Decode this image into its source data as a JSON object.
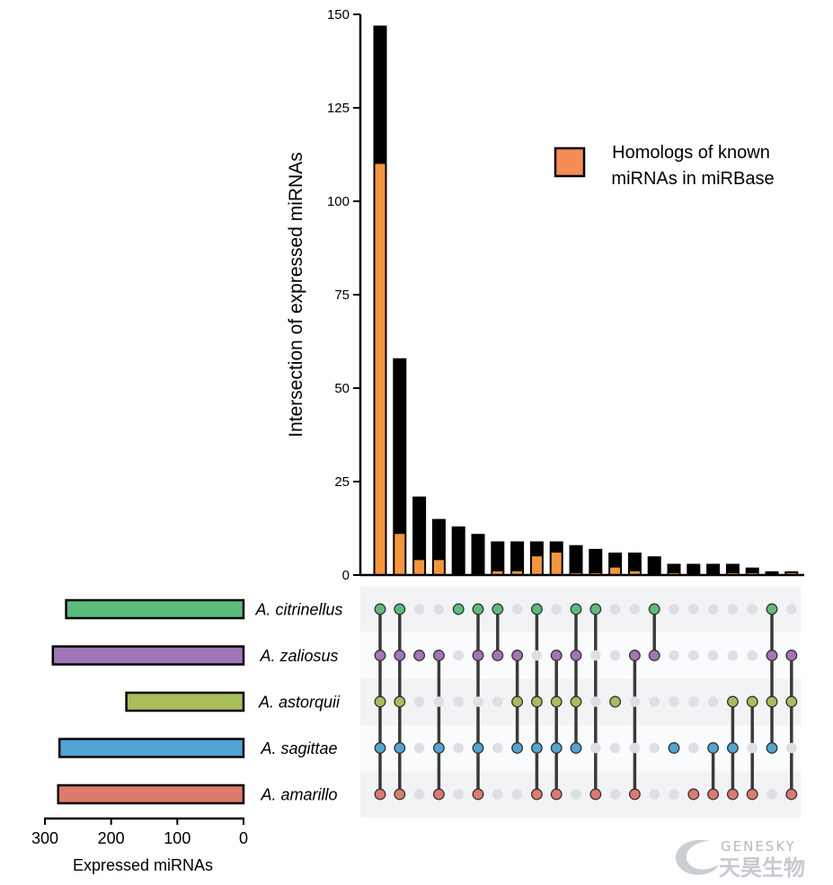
{
  "chart_data": {
    "type": "upset",
    "ylabel": "Intersection of expressed miRNAs",
    "ylim": [
      0,
      150
    ],
    "yticks": [
      0,
      25,
      50,
      75,
      100,
      125,
      150
    ],
    "legend": {
      "label_line1": "Homologs of known",
      "label_line2": "miRNAs in miRBase",
      "color": "#F58B55",
      "placement": "top-right"
    },
    "bar_colors": {
      "total": "#000000",
      "homolog": "#F5963A"
    },
    "sets": [
      {
        "name": "A. citrinellus",
        "size": 268,
        "color": "#5BBD7C"
      },
      {
        "name": "A. zaliosus",
        "size": 288,
        "color": "#A275B5"
      },
      {
        "name": "A. astorquii",
        "size": 177,
        "color": "#A8BE5A"
      },
      {
        "name": "A. sagittae",
        "size": 278,
        "color": "#51A4D3"
      },
      {
        "name": "A. amarillo",
        "size": 280,
        "color": "#DE7A6C"
      }
    ],
    "set_size_axis": {
      "label": "Expressed miRNAs",
      "ticks": [
        300,
        200,
        100,
        0
      ],
      "max": 300
    },
    "intersections": [
      {
        "members": [
          0,
          1,
          2,
          3,
          4
        ],
        "total": 147,
        "homolog": 110
      },
      {
        "members": [
          0,
          1,
          2,
          3,
          4
        ],
        "total": 58,
        "homolog": 11
      },
      {
        "members": [
          1
        ],
        "total": 21,
        "homolog": 4
      },
      {
        "members": [
          1,
          3,
          4
        ],
        "total": 15,
        "homolog": 4
      },
      {
        "members": [
          0
        ],
        "total": 13,
        "homolog": 0
      },
      {
        "members": [
          0,
          1,
          3,
          4
        ],
        "total": 11,
        "homolog": 0
      },
      {
        "members": [
          0,
          1
        ],
        "total": 9,
        "homolog": 1
      },
      {
        "members": [
          1,
          2,
          3
        ],
        "total": 9,
        "homolog": 1
      },
      {
        "members": [
          0,
          2,
          3,
          4
        ],
        "total": 9,
        "homolog": 5
      },
      {
        "members": [
          1,
          2,
          3,
          4
        ],
        "total": 9,
        "homolog": 6
      },
      {
        "members": [
          0,
          1,
          2,
          3
        ],
        "total": 8,
        "homolog": 0.5
      },
      {
        "members": [
          0,
          4
        ],
        "total": 7,
        "homolog": 0.5
      },
      {
        "members": [
          2
        ],
        "total": 6,
        "homolog": 2
      },
      {
        "members": [
          1,
          4
        ],
        "total": 6,
        "homolog": 1
      },
      {
        "members": [
          0,
          1
        ],
        "total": 5,
        "homolog": 0
      },
      {
        "members": [
          3
        ],
        "total": 3,
        "homolog": 0.5
      },
      {
        "members": [
          4
        ],
        "total": 3,
        "homolog": 0
      },
      {
        "members": [
          3,
          4
        ],
        "total": 3,
        "homolog": 0
      },
      {
        "members": [
          2,
          3,
          4
        ],
        "total": 3,
        "homolog": 0.5
      },
      {
        "members": [
          2,
          4
        ],
        "total": 2,
        "homolog": 0.5
      },
      {
        "members": [
          0,
          1,
          2,
          3
        ],
        "total": 1,
        "homolog": 0
      },
      {
        "members": [
          1,
          2,
          4
        ],
        "total": 1,
        "homolog": 0.5
      }
    ]
  },
  "watermark": {
    "en": "GENESKY",
    "cn": "天昊生物"
  }
}
